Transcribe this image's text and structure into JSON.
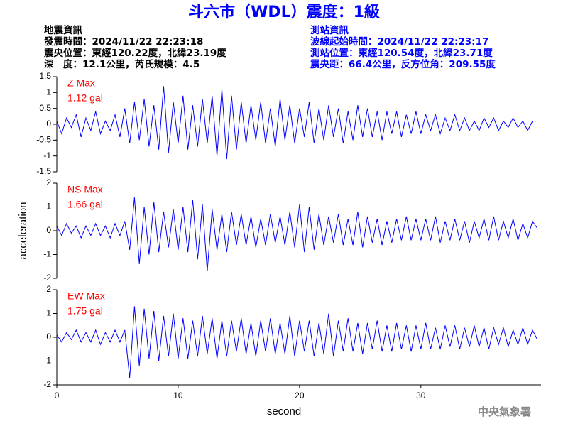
{
  "title": "斗六市（WDL）震度：1級",
  "event_info": [
    "地震資訊",
    "發震時間：2024/11/22 22:23:18",
    "震央位置：東經120.22度，北緯23.19度",
    "深　度：12.1公里，芮氏規模：4.5"
  ],
  "station_info": [
    "測站資訊",
    "波線起始時間：2024/11/22 22:23:17",
    "測站位置：東經120.54度，北緯23.71度",
    "震央距：66.4公里，反方位角：209.55度"
  ],
  "footer": "中央氣象署",
  "chart_data": [
    {
      "type": "line",
      "annotation": [
        "Z Max",
        "1.12 gal"
      ],
      "color": "#0000ff",
      "xlim": [
        0,
        39.9
      ],
      "ylim": [
        -1.5,
        1.5
      ],
      "yticks": [
        -1.5,
        -1,
        -0.5,
        0,
        0.5,
        1,
        1.5
      ],
      "x": [
        0,
        0.4,
        0.8,
        1.2,
        1.6,
        2,
        2.4,
        2.8,
        3.2,
        3.6,
        4,
        4.4,
        4.8,
        5.2,
        5.6,
        6,
        6.4,
        6.8,
        7.2,
        7.6,
        8,
        8.4,
        8.8,
        9.2,
        9.6,
        10,
        10.4,
        10.8,
        11.2,
        11.6,
        12,
        12.4,
        12.8,
        13.2,
        13.6,
        14,
        14.4,
        14.8,
        15.2,
        15.6,
        16,
        16.4,
        16.8,
        17.2,
        17.6,
        18,
        18.4,
        18.8,
        19.2,
        19.6,
        20,
        20.4,
        20.8,
        21.2,
        21.6,
        22,
        22.4,
        22.8,
        23.2,
        23.6,
        24,
        24.4,
        24.8,
        25.2,
        25.6,
        26,
        26.4,
        26.8,
        27.2,
        27.6,
        28,
        28.4,
        28.8,
        29.2,
        29.6,
        30,
        30.4,
        30.8,
        31.2,
        31.6,
        32,
        32.4,
        32.8,
        33.2,
        33.6,
        34,
        34.4,
        34.8,
        35.2,
        35.6,
        36,
        36.4,
        36.8,
        37.2,
        37.6,
        38,
        38.4,
        38.8,
        39.2,
        39.6
      ],
      "values": [
        0.1,
        -0.3,
        0.2,
        -0.1,
        0.3,
        -0.4,
        0.2,
        -0.2,
        0.4,
        -0.3,
        0.1,
        -0.2,
        0.3,
        -0.4,
        0.5,
        -0.6,
        0.7,
        -0.5,
        0.8,
        -0.7,
        0.6,
        -0.8,
        1.2,
        -0.9,
        0.7,
        -0.6,
        0.9,
        -0.8,
        0.6,
        -0.7,
        0.8,
        -0.6,
        0.9,
        -1.0,
        1.1,
        -1.1,
        0.9,
        -0.8,
        0.7,
        -0.6,
        0.6,
        -0.5,
        0.7,
        -0.6,
        0.5,
        -0.7,
        0.8,
        -0.5,
        0.6,
        -0.6,
        0.5,
        -0.4,
        0.7,
        -0.6,
        0.5,
        -0.5,
        0.6,
        -0.4,
        0.5,
        -0.6,
        0.4,
        -0.5,
        0.6,
        -0.4,
        0.5,
        -0.4,
        0.4,
        -0.5,
        0.4,
        -0.3,
        0.4,
        -0.4,
        0.3,
        -0.3,
        0.4,
        -0.3,
        0.3,
        -0.2,
        0.3,
        -0.3,
        0.2,
        -0.2,
        0.3,
        -0.2,
        0.2,
        -0.2,
        0.1,
        -0.2,
        0.2,
        -0.1,
        0.2,
        -0.2,
        0.1,
        -0.1,
        0.2,
        -0.1,
        0.1,
        -0.2,
        0.1,
        0.1
      ]
    },
    {
      "type": "line",
      "annotation": [
        "NS Max",
        "1.66 gal"
      ],
      "color": "#0000ff",
      "ylabel": "acceleration",
      "xlim": [
        0,
        39.9
      ],
      "ylim": [
        -2,
        2
      ],
      "yticks": [
        -2,
        -1,
        0,
        1,
        2
      ],
      "x": [
        0,
        0.4,
        0.8,
        1.2,
        1.6,
        2,
        2.4,
        2.8,
        3.2,
        3.6,
        4,
        4.4,
        4.8,
        5.2,
        5.6,
        6,
        6.4,
        6.8,
        7.2,
        7.6,
        8,
        8.4,
        8.8,
        9.2,
        9.6,
        10,
        10.4,
        10.8,
        11.2,
        11.6,
        12,
        12.4,
        12.8,
        13.2,
        13.6,
        14,
        14.4,
        14.8,
        15.2,
        15.6,
        16,
        16.4,
        16.8,
        17.2,
        17.6,
        18,
        18.4,
        18.8,
        19.2,
        19.6,
        20,
        20.4,
        20.8,
        21.2,
        21.6,
        22,
        22.4,
        22.8,
        23.2,
        23.6,
        24,
        24.4,
        24.8,
        25.2,
        25.6,
        26,
        26.4,
        26.8,
        27.2,
        27.6,
        28,
        28.4,
        28.8,
        29.2,
        29.6,
        30,
        30.4,
        30.8,
        31.2,
        31.6,
        32,
        32.4,
        32.8,
        33.2,
        33.6,
        34,
        34.4,
        34.8,
        35.2,
        35.6,
        36,
        36.4,
        36.8,
        37.2,
        37.6,
        38,
        38.4,
        38.8,
        39.2,
        39.6
      ],
      "values": [
        0.2,
        -0.2,
        0.3,
        -0.1,
        0.2,
        -0.3,
        0.2,
        -0.2,
        0.3,
        -0.2,
        0.2,
        -0.3,
        0.3,
        -0.2,
        0.4,
        -0.8,
        1.4,
        -1.4,
        1.0,
        -1.0,
        1.2,
        -0.9,
        0.8,
        -0.7,
        0.9,
        -0.8,
        1.0,
        -0.9,
        1.3,
        -1.2,
        1.1,
        -1.7,
        0.9,
        -0.8,
        0.7,
        -0.9,
        0.8,
        -0.6,
        0.7,
        -0.6,
        0.6,
        -0.7,
        0.5,
        -0.6,
        0.7,
        -0.5,
        0.6,
        -0.6,
        0.8,
        -0.7,
        1.1,
        -0.9,
        1.0,
        -0.8,
        0.7,
        -0.6,
        0.6,
        -0.5,
        0.7,
        -0.6,
        0.5,
        -0.6,
        0.8,
        -0.7,
        0.6,
        -0.5,
        0.5,
        -0.6,
        0.4,
        -0.5,
        0.5,
        -0.4,
        0.6,
        -0.4,
        0.5,
        -0.4,
        0.5,
        -0.4,
        0.6,
        -0.5,
        0.4,
        -0.4,
        0.5,
        -0.4,
        0.4,
        -0.5,
        0.4,
        -0.3,
        0.5,
        -0.4,
        0.6,
        -0.4,
        0.4,
        -0.3,
        0.5,
        -0.4,
        0.3,
        -0.3,
        0.4,
        0.1
      ]
    },
    {
      "type": "line",
      "annotation": [
        "EW Max",
        "1.75 gal"
      ],
      "color": "#0000ff",
      "xlabel": "second",
      "xlim": [
        0,
        39.9
      ],
      "ylim": [
        -2,
        2
      ],
      "yticks": [
        -2,
        -1,
        0,
        1,
        2
      ],
      "xticks": [
        0,
        10,
        20,
        30
      ],
      "x": [
        0,
        0.4,
        0.8,
        1.2,
        1.6,
        2,
        2.4,
        2.8,
        3.2,
        3.6,
        4,
        4.4,
        4.8,
        5.2,
        5.6,
        6,
        6.4,
        6.8,
        7.2,
        7.6,
        8,
        8.4,
        8.8,
        9.2,
        9.6,
        10,
        10.4,
        10.8,
        11.2,
        11.6,
        12,
        12.4,
        12.8,
        13.2,
        13.6,
        14,
        14.4,
        14.8,
        15.2,
        15.6,
        16,
        16.4,
        16.8,
        17.2,
        17.6,
        18,
        18.4,
        18.8,
        19.2,
        19.6,
        20,
        20.4,
        20.8,
        21.2,
        21.6,
        22,
        22.4,
        22.8,
        23.2,
        23.6,
        24,
        24.4,
        24.8,
        25.2,
        25.6,
        26,
        26.4,
        26.8,
        27.2,
        27.6,
        28,
        28.4,
        28.8,
        29.2,
        29.6,
        30,
        30.4,
        30.8,
        31.2,
        31.6,
        32,
        32.4,
        32.8,
        33.2,
        33.6,
        34,
        34.4,
        34.8,
        35.2,
        35.6,
        36,
        36.4,
        36.8,
        37.2,
        37.6,
        38,
        38.4,
        38.8,
        39.2,
        39.6
      ],
      "values": [
        0.1,
        -0.2,
        0.2,
        -0.1,
        0.3,
        -0.2,
        0.2,
        -0.2,
        0.3,
        -0.3,
        0.2,
        -0.2,
        0.3,
        -0.2,
        0.3,
        -1.7,
        1.3,
        -1.2,
        1.2,
        -0.9,
        1.1,
        -1.0,
        0.9,
        -0.8,
        1.0,
        -0.9,
        0.8,
        -0.9,
        0.7,
        -0.8,
        0.9,
        -0.7,
        0.8,
        -0.9,
        0.7,
        -0.8,
        0.7,
        -0.6,
        0.8,
        -0.7,
        0.6,
        -0.8,
        0.7,
        -0.6,
        0.8,
        -0.7,
        0.6,
        -0.7,
        0.9,
        -0.8,
        0.7,
        -0.6,
        0.7,
        -0.8,
        0.6,
        -0.7,
        1.0,
        -0.8,
        0.7,
        -0.6,
        0.8,
        -0.6,
        0.6,
        -0.7,
        0.6,
        -0.5,
        0.7,
        -0.6,
        0.5,
        -0.6,
        0.6,
        -0.5,
        0.5,
        -0.6,
        0.5,
        -0.5,
        0.6,
        -0.5,
        0.4,
        -0.5,
        0.5,
        -0.4,
        0.5,
        -0.5,
        0.4,
        -0.4,
        0.5,
        -0.4,
        0.4,
        -0.5,
        0.4,
        -0.3,
        0.4,
        -0.4,
        0.3,
        -0.3,
        0.4,
        -0.3,
        0.3,
        -0.1
      ]
    }
  ]
}
